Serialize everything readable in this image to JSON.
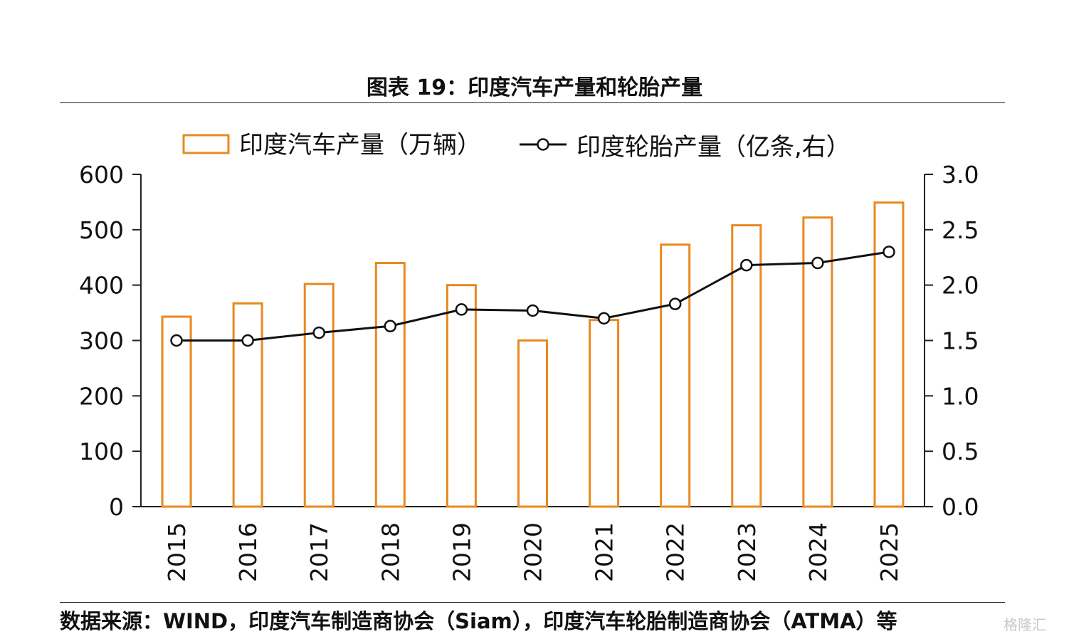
{
  "title": "图表 19：印度汽车产量和轮胎产量",
  "source": "数据来源：WIND，印度汽车制造商协会（Siam），印度汽车轮胎制造商协会（ATMA）等",
  "watermark": "格隆汇",
  "colors": {
    "bar": "#E8891F",
    "line": "#111111"
  },
  "chart_data": {
    "type": "bar",
    "categories": [
      "2015",
      "2016",
      "2017",
      "2018",
      "2019",
      "2020",
      "2021",
      "2022",
      "2023",
      "2024",
      "2025"
    ],
    "series": [
      {
        "name": "印度汽车产量（万辆）",
        "type": "bar",
        "axis": "left",
        "values": [
          343,
          367,
          402,
          440,
          400,
          300,
          337,
          473,
          508,
          522,
          549
        ]
      },
      {
        "name": "印度轮胎产量（亿条,右）",
        "type": "line",
        "axis": "right",
        "values": [
          1.5,
          1.5,
          1.57,
          1.63,
          1.78,
          1.77,
          1.7,
          1.83,
          2.18,
          2.2,
          2.3
        ]
      }
    ],
    "y_left": {
      "min": 0,
      "max": 600,
      "ticks": [
        "0",
        "100",
        "200",
        "300",
        "400",
        "500",
        "600"
      ]
    },
    "y_right": {
      "min": 0,
      "max": 3.0,
      "ticks": [
        "0.0",
        "0.5",
        "1.0",
        "1.5",
        "2.0",
        "2.5",
        "3.0"
      ]
    },
    "grid": false,
    "legend": "top"
  }
}
